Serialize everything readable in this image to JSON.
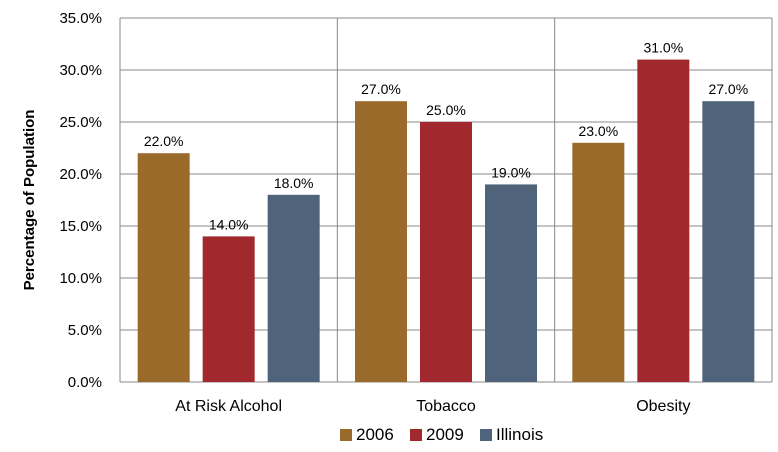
{
  "chart_data": {
    "type": "bar",
    "title": "",
    "xlabel": "",
    "ylabel": "Percentage of Population",
    "categories": [
      "At Risk Alcohol",
      "Tobacco",
      "Obesity"
    ],
    "series": [
      {
        "name": "2006",
        "color": "#9a6a2a",
        "values": [
          22.0,
          27.0,
          23.0
        ],
        "labels": [
          "22.0%",
          "27.0%",
          "23.0%"
        ]
      },
      {
        "name": "2009",
        "color": "#a1282c",
        "values": [
          14.0,
          25.0,
          31.0
        ],
        "labels": [
          "14.0%",
          "25.0%",
          "31.0%"
        ]
      },
      {
        "name": "Illinois",
        "color": "#4f637a",
        "values": [
          18.0,
          19.0,
          27.0
        ],
        "labels": [
          "18.0%",
          "19.0%",
          "27.0%"
        ]
      }
    ],
    "ylim": [
      0,
      35
    ],
    "yticks": [
      0,
      5,
      10,
      15,
      20,
      25,
      30,
      35
    ],
    "ytick_labels": [
      "0.0%",
      "5.0%",
      "10.0%",
      "15.0%",
      "20.0%",
      "25.0%",
      "30.0%",
      "35.0%"
    ],
    "grid": "horizontal",
    "legend": "bottom-center"
  }
}
